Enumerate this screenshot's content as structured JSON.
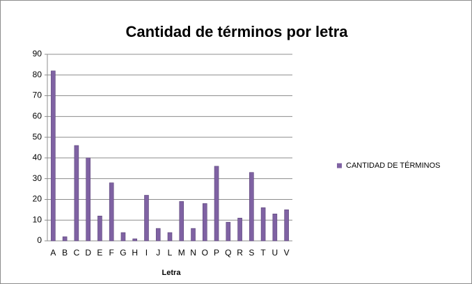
{
  "chart_data": {
    "type": "bar",
    "title": "Cantidad de términos por letra",
    "categories": [
      "A",
      "B",
      "C",
      "D",
      "E",
      "F",
      "G",
      "H",
      "I",
      "J",
      "L",
      "M",
      "N",
      "O",
      "P",
      "Q",
      "R",
      "S",
      "T",
      "U",
      "V"
    ],
    "series": [
      {
        "name": "CANTIDAD DE TÉRMINOS",
        "color": "#7f62a3",
        "values": [
          82,
          2,
          46,
          40,
          12,
          28,
          4,
          1,
          22,
          6,
          4,
          19,
          6,
          18,
          36,
          9,
          11,
          33,
          16,
          13,
          15
        ]
      }
    ],
    "xlabel": "Letra",
    "ylim": [
      0,
      90
    ],
    "yticks": [
      0,
      10,
      20,
      30,
      40,
      50,
      60,
      70,
      80,
      90
    ],
    "grid": true,
    "legend": "right"
  }
}
